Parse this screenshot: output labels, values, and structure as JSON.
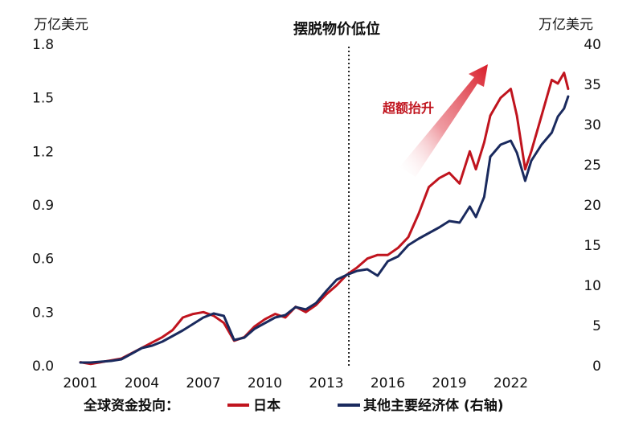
{
  "chart_data": {
    "type": "line",
    "title": "",
    "annotation_title": "摆脱物价低位",
    "annotation_arrow_label": "超额抬升",
    "left_axis": {
      "unit": "万亿美元",
      "ticks": [
        "0.0",
        "0.3",
        "0.6",
        "0.9",
        "1.2",
        "1.5",
        "1.8"
      ],
      "ylim": [
        0,
        1.8
      ]
    },
    "right_axis": {
      "unit": "万亿美元",
      "ticks": [
        "0",
        "5",
        "10",
        "15",
        "20",
        "25",
        "30",
        "35",
        "40"
      ],
      "ylim": [
        0,
        40
      ]
    },
    "x_ticks": [
      "2001",
      "2004",
      "2007",
      "2010",
      "2013",
      "2016",
      "2019",
      "2022"
    ],
    "xlim": [
      2001,
      2025
    ],
    "divider_year": 2014.1,
    "legend_prefix": "全球资金投向：",
    "colors": {
      "japan": "#c0141e",
      "other": "#1a2a5e",
      "arrow": "#d81e2a"
    },
    "series": [
      {
        "name": "日本",
        "axis": "left",
        "x": [
          2001.0,
          2001.5,
          2002.0,
          2002.5,
          2003.0,
          2003.5,
          2004.0,
          2004.5,
          2005.0,
          2005.5,
          2006.0,
          2006.5,
          2007.0,
          2007.5,
          2008.0,
          2008.5,
          2009.0,
          2009.5,
          2010.0,
          2010.5,
          2011.0,
          2011.5,
          2012.0,
          2012.5,
          2013.0,
          2013.5,
          2014.0,
          2014.5,
          2015.0,
          2015.5,
          2016.0,
          2016.5,
          2017.0,
          2017.5,
          2018.0,
          2018.5,
          2019.0,
          2019.5,
          2020.0,
          2020.3,
          2020.7,
          2021.0,
          2021.5,
          2022.0,
          2022.3,
          2022.7,
          2023.0,
          2023.5,
          2024.0,
          2024.3,
          2024.6,
          2024.8
        ],
        "values": [
          0.02,
          0.01,
          0.02,
          0.03,
          0.04,
          0.07,
          0.1,
          0.13,
          0.16,
          0.2,
          0.27,
          0.29,
          0.3,
          0.28,
          0.24,
          0.14,
          0.16,
          0.22,
          0.26,
          0.29,
          0.27,
          0.33,
          0.3,
          0.34,
          0.4,
          0.45,
          0.51,
          0.55,
          0.6,
          0.62,
          0.62,
          0.66,
          0.72,
          0.85,
          1.0,
          1.05,
          1.08,
          1.02,
          1.2,
          1.1,
          1.25,
          1.4,
          1.5,
          1.55,
          1.4,
          1.1,
          1.2,
          1.4,
          1.6,
          1.58,
          1.64,
          1.55
        ]
      },
      {
        "name": "其他主要经济体 (右轴)",
        "axis": "right",
        "x": [
          2001.0,
          2001.5,
          2002.0,
          2002.5,
          2003.0,
          2003.5,
          2004.0,
          2004.5,
          2005.0,
          2005.5,
          2006.0,
          2006.5,
          2007.0,
          2007.5,
          2008.0,
          2008.5,
          2009.0,
          2009.5,
          2010.0,
          2010.5,
          2011.0,
          2011.5,
          2012.0,
          2012.5,
          2013.0,
          2013.5,
          2014.0,
          2014.5,
          2015.0,
          2015.5,
          2016.0,
          2016.5,
          2017.0,
          2017.5,
          2018.0,
          2018.5,
          2019.0,
          2019.5,
          2020.0,
          2020.3,
          2020.7,
          2021.0,
          2021.5,
          2022.0,
          2022.3,
          2022.7,
          2023.0,
          2023.5,
          2024.0,
          2024.3,
          2024.6,
          2024.8
        ],
        "values": [
          0.4,
          0.4,
          0.5,
          0.6,
          0.8,
          1.5,
          2.2,
          2.5,
          3.0,
          3.7,
          4.4,
          5.2,
          6.0,
          6.5,
          6.2,
          3.2,
          3.5,
          4.6,
          5.3,
          6.0,
          6.3,
          7.3,
          7.0,
          7.8,
          9.3,
          10.7,
          11.3,
          11.8,
          12.0,
          11.2,
          13.0,
          13.6,
          15.0,
          15.8,
          16.5,
          17.2,
          18.0,
          17.8,
          19.8,
          18.5,
          21.0,
          26.0,
          27.5,
          28.0,
          26.5,
          23.0,
          25.5,
          27.5,
          29.0,
          31.0,
          32.0,
          33.5
        ]
      }
    ]
  }
}
